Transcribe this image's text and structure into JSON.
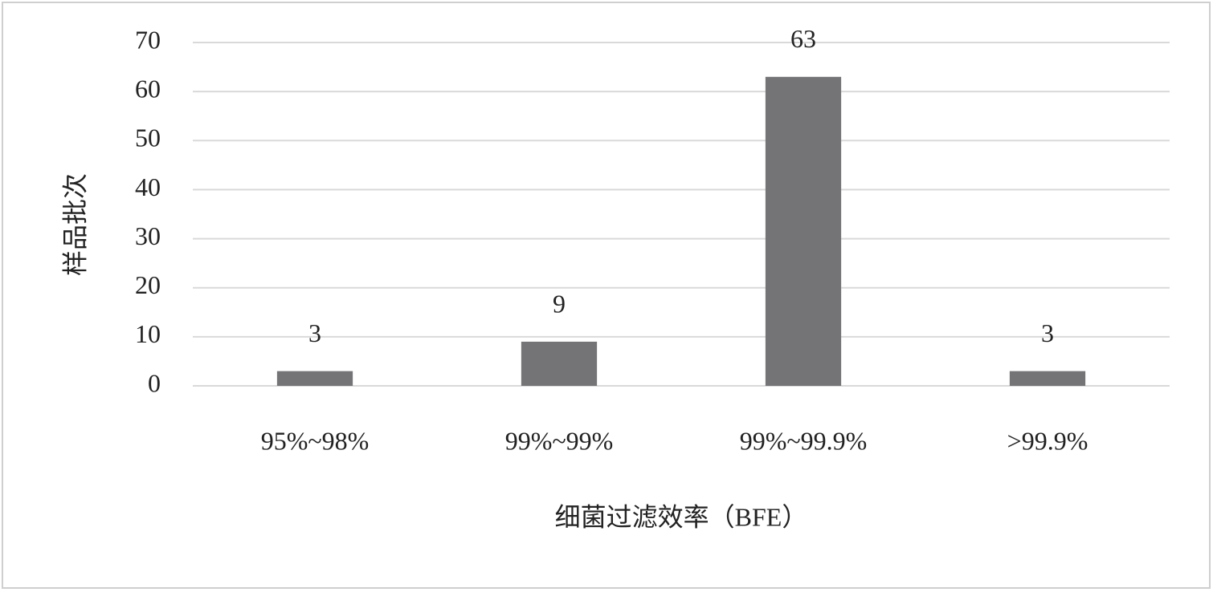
{
  "chart_data": {
    "type": "bar",
    "x_label": "细菌过滤效率（BFE）",
    "y_label": "样品批次",
    "categories": [
      "95%~98%",
      "99%~99%",
      "99%~99.9%",
      ">99.9%"
    ],
    "values": [
      3,
      9,
      63,
      3
    ],
    "color": "#747477",
    "ylim": [
      0,
      70
    ],
    "yticks": [
      0,
      10,
      20,
      30,
      40,
      50,
      60,
      70
    ],
    "grid": true
  }
}
